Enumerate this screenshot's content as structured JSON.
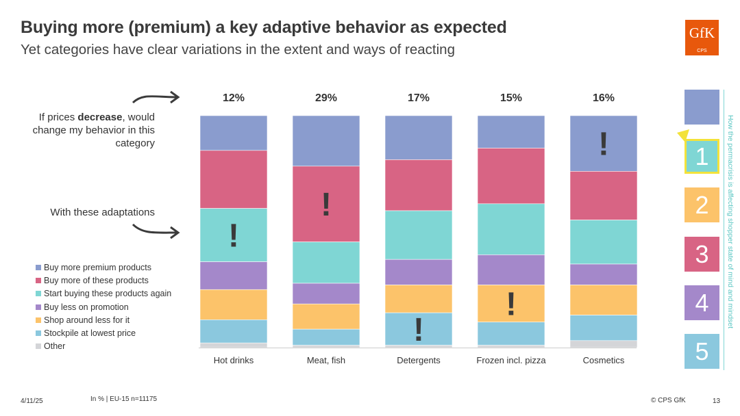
{
  "header": {
    "title": "Buying more (premium) a key adaptive behavior as expected",
    "subtitle": "Yet categories have clear variations in the extent and ways of reacting"
  },
  "logo": {
    "text": "GfK",
    "subtext": "CPS"
  },
  "left_labels": {
    "decrease_prefix": "If prices ",
    "decrease_bold": "decrease",
    "decrease_suffix": ", would change my behavior in this category",
    "adaptations": "With these adaptations"
  },
  "chart_data": {
    "type": "bar",
    "stacked": true,
    "normalized": true,
    "categories": [
      "Hot drinks",
      "Meat, fish",
      "Detergents",
      "Frozen incl. pizza",
      "Cosmetics"
    ],
    "top_labels": [
      "12%",
      "29%",
      "17%",
      "15%",
      "16%"
    ],
    "series": [
      {
        "name": "Buy more premium products",
        "color": "#8a9cce",
        "values": [
          15,
          22,
          19,
          14,
          24
        ]
      },
      {
        "name": "Buy more of these products",
        "color": "#d86484",
        "values": [
          25,
          33,
          22,
          24,
          21
        ]
      },
      {
        "name": "Start buying these products again",
        "color": "#7fd6d4",
        "values": [
          23,
          18,
          21,
          22,
          19
        ]
      },
      {
        "name": "Buy less on promotion",
        "color": "#a488ca",
        "values": [
          12,
          9,
          11,
          13,
          9
        ]
      },
      {
        "name": "Shop around less for it",
        "color": "#fcc36a",
        "values": [
          13,
          11,
          12,
          16,
          13
        ]
      },
      {
        "name": "Stockpile at lowest price",
        "color": "#8bc8de",
        "values": [
          10,
          7,
          14,
          10,
          11
        ]
      },
      {
        "name": "Other",
        "color": "#d4d5d8",
        "values": [
          2,
          1,
          1,
          1,
          3
        ]
      }
    ],
    "callouts": [
      {
        "category": "Hot drinks",
        "series": "Start buying these products again",
        "text": "!"
      },
      {
        "category": "Meat, fish",
        "series": "Buy more of these products",
        "text": "!"
      },
      {
        "category": "Detergents",
        "series": "Stockpile at lowest price",
        "text": "!"
      },
      {
        "category": "Frozen incl. pizza",
        "series": "Shop around less for it",
        "text": "!"
      },
      {
        "category": "Cosmetics",
        "series": "Buy more premium products",
        "text": "!"
      }
    ]
  },
  "side_panel": {
    "boxes": [
      {
        "label": "",
        "color": "#8a9cce"
      },
      {
        "label": "1",
        "color": "#7fd6d4"
      },
      {
        "label": "2",
        "color": "#fcc36a"
      },
      {
        "label": "3",
        "color": "#d86484"
      },
      {
        "label": "4",
        "color": "#a488ca"
      },
      {
        "label": "5",
        "color": "#8bc8de"
      }
    ],
    "highlight_color": "#f3e23a",
    "caption": "How the permacrisis is affecting shopper state of mind and mindset"
  },
  "footer": {
    "date": "4/11/25",
    "note": "In % | EU-15 n=11175",
    "copyright": "© CPS GfK",
    "page": "13"
  }
}
